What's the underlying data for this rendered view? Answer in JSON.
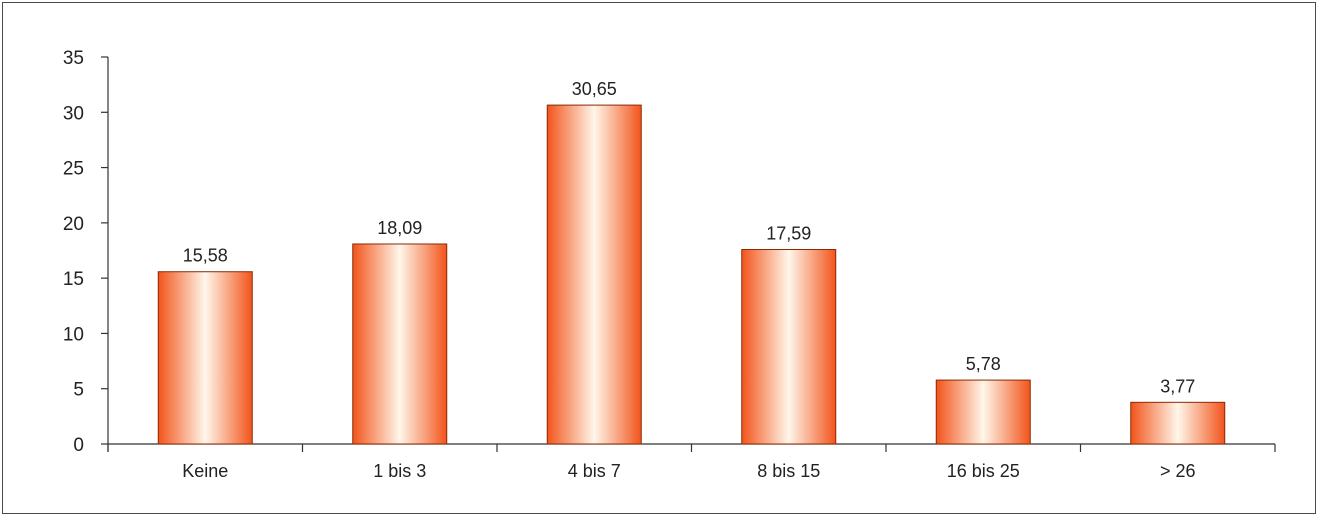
{
  "chart_data": {
    "type": "bar",
    "categories": [
      "Keine",
      "1 bis 3",
      "4 bis 7",
      "8 bis 15",
      "16 bis 25",
      "> 26"
    ],
    "values": [
      15.58,
      18.09,
      30.65,
      17.59,
      5.78,
      3.77
    ],
    "value_labels": [
      "15,58",
      "18,09",
      "30,65",
      "17,59",
      "5,78",
      "3,77"
    ],
    "ylim": [
      0,
      35
    ],
    "yticks": [
      0,
      5,
      10,
      15,
      20,
      25,
      30,
      35
    ],
    "grid": false,
    "colors": {
      "bar_edge": "#f2541b",
      "bar_center": "#fff6ea",
      "bar_outline": "#8a2a05",
      "axis": "#333333",
      "frame": "#4a4a4a"
    }
  }
}
